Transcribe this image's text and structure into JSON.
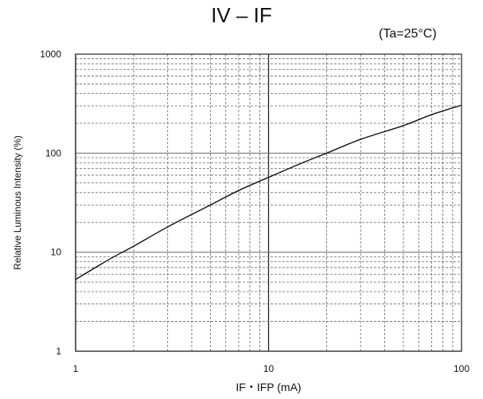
{
  "chart_data": {
    "type": "line",
    "title": "IV – IF",
    "condition": "(Ta=25°C)",
    "xlabel": "IF・IFP (mA)",
    "ylabel": "Relative Luminous Intensity (%)",
    "x_scale": "log",
    "y_scale": "log",
    "xlim": [
      1,
      100
    ],
    "ylim": [
      1,
      1000
    ],
    "x_ticks": [
      "1",
      "10",
      "100"
    ],
    "y_ticks": [
      "1",
      "10",
      "100",
      "1000"
    ],
    "grid": true,
    "series": [
      {
        "x": [
          1,
          1.5,
          2,
          3,
          5,
          7,
          10,
          15,
          20,
          30,
          50,
          70,
          100
        ],
        "values": [
          5.3,
          8.5,
          11.5,
          18,
          30,
          42,
          57,
          80,
          100,
          138,
          190,
          245,
          305
        ]
      }
    ]
  }
}
